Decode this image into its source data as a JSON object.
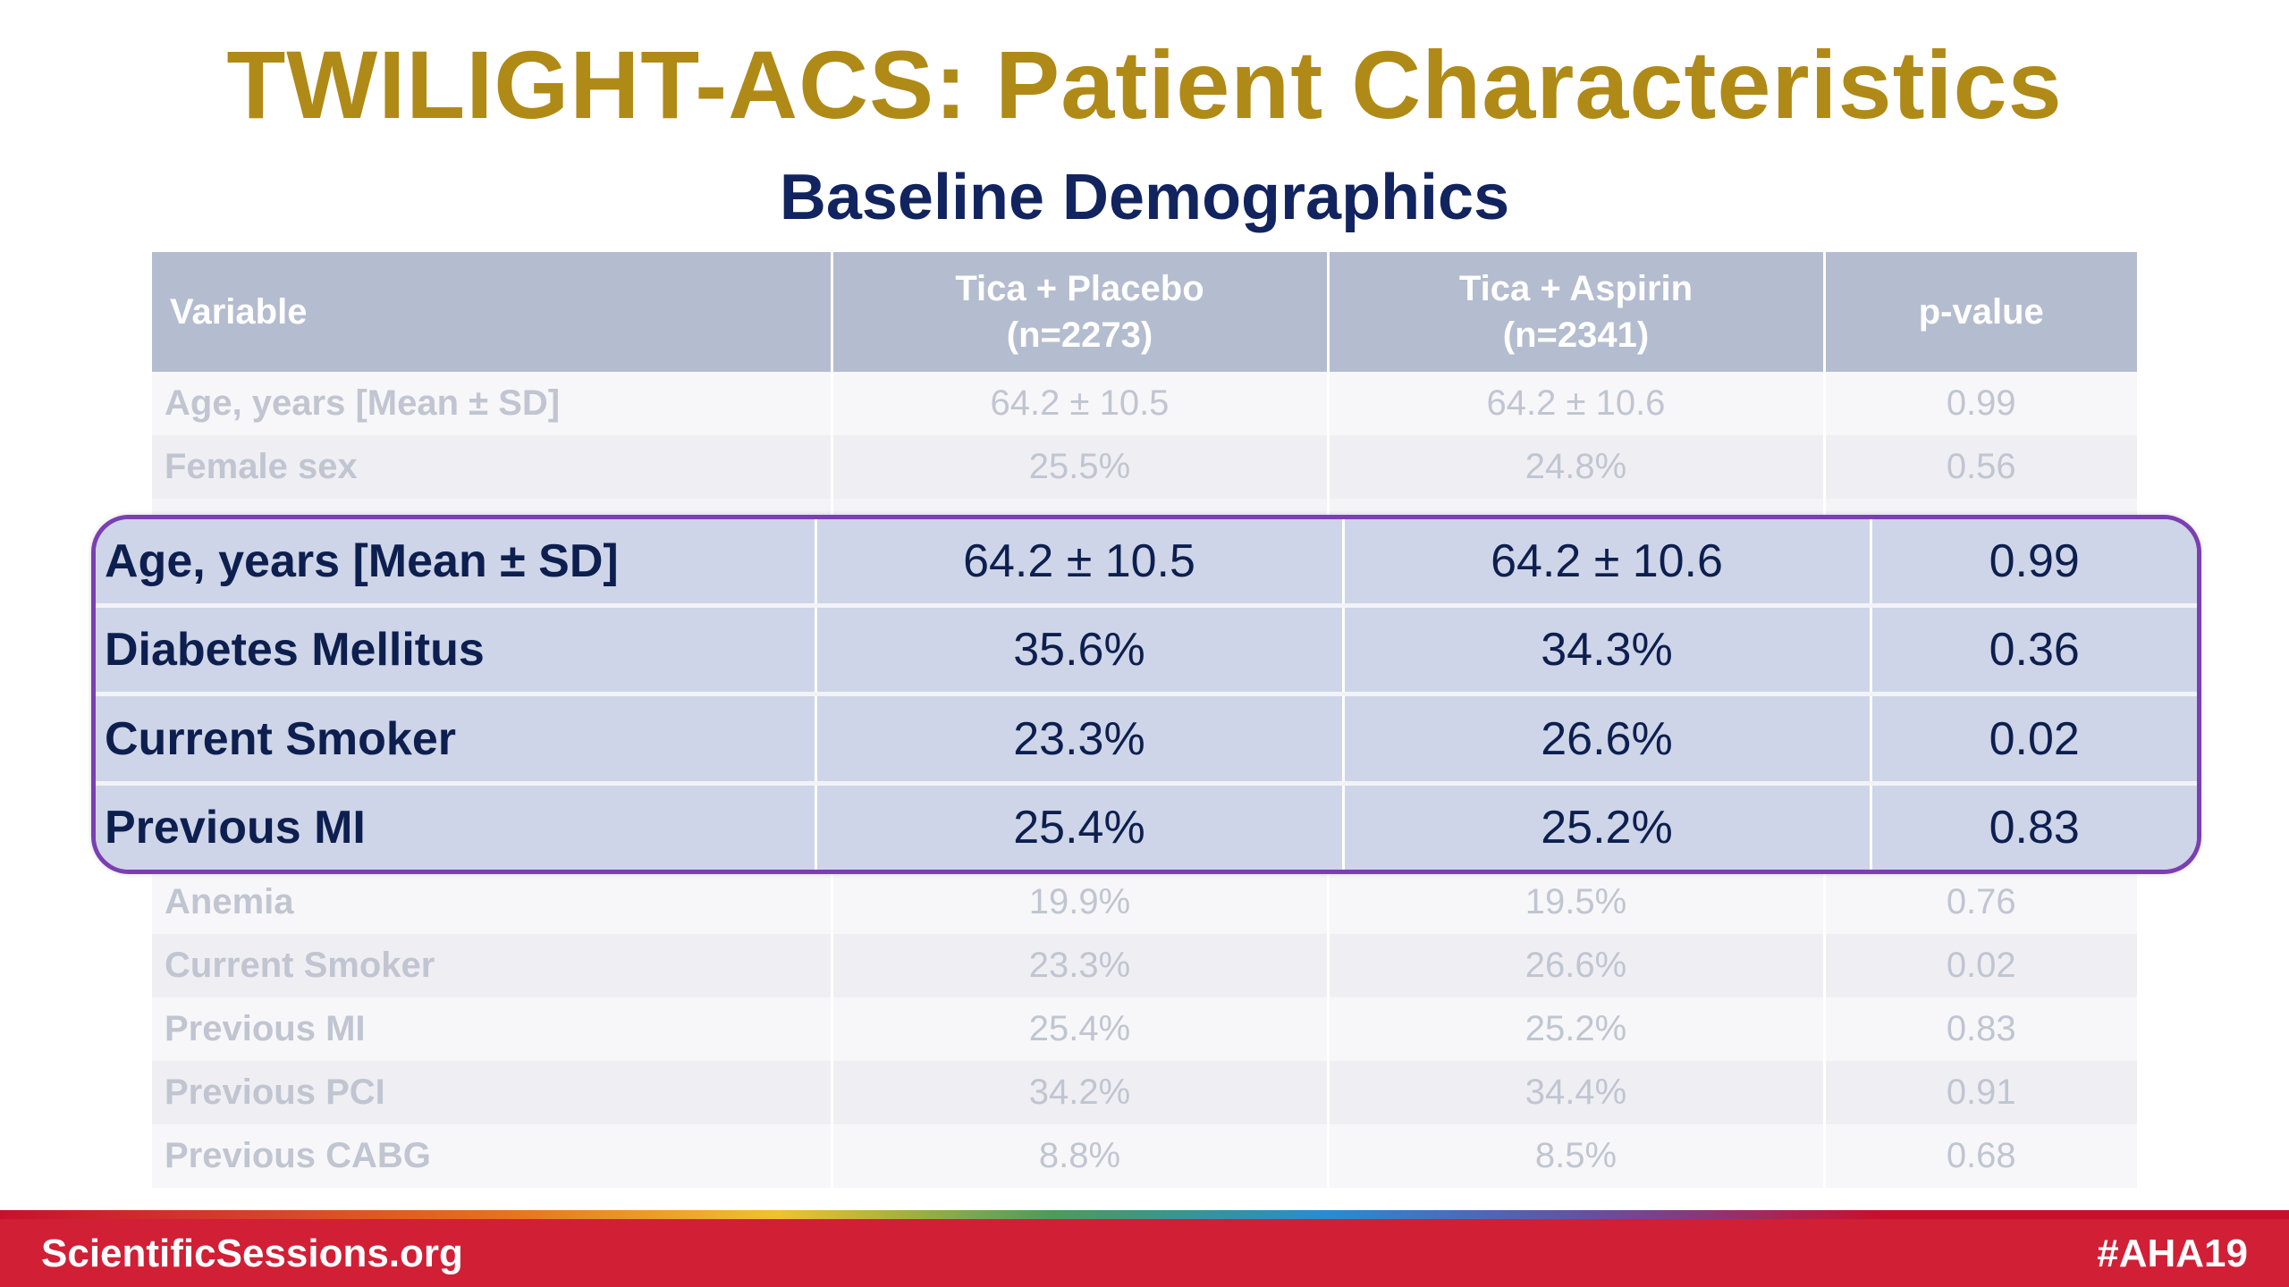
{
  "slide": {
    "title": "TWILIGHT-ACS: Patient Characteristics",
    "subtitle": "Baseline Demographics"
  },
  "table": {
    "headers": {
      "variable": "Variable",
      "placebo_line1": "Tica + Placebo",
      "placebo_line2": "(n=2273)",
      "aspirin_line1": "Tica + Aspirin",
      "aspirin_line2": "(n=2341)",
      "pvalue": "p-value"
    },
    "top_rows": [
      {
        "variable": "Age, years [Mean ± SD]",
        "placebo": "64.2 ± 10.5",
        "aspirin": "64.2 ± 10.6",
        "p": "0.99"
      },
      {
        "variable": "Female sex",
        "placebo": "25.5%",
        "aspirin": "24.8%",
        "p": "0.56"
      }
    ],
    "bottom_rows": [
      {
        "variable": "Anemia",
        "placebo": "19.9%",
        "aspirin": "19.5%",
        "p": "0.76"
      },
      {
        "variable": "Current Smoker",
        "placebo": "23.3%",
        "aspirin": "26.6%",
        "p": "0.02"
      },
      {
        "variable": "Previous MI",
        "placebo": "25.4%",
        "aspirin": "25.2%",
        "p": "0.83"
      },
      {
        "variable": "Previous PCI",
        "placebo": "34.2%",
        "aspirin": "34.4%",
        "p": "0.91"
      },
      {
        "variable": "Previous CABG",
        "placebo": "8.8%",
        "aspirin": "8.5%",
        "p": "0.68"
      }
    ]
  },
  "highlight": {
    "rows": [
      {
        "variable": "Age, years [Mean ± SD]",
        "placebo": "64.2 ± 10.5",
        "aspirin": "64.2 ± 10.6",
        "p": "0.99"
      },
      {
        "variable": "Diabetes Mellitus",
        "placebo": "35.6%",
        "aspirin": "34.3%",
        "p": "0.36"
      },
      {
        "variable": "Current Smoker",
        "placebo": "23.3%",
        "aspirin": "26.6%",
        "p": "0.02"
      },
      {
        "variable": "Previous MI",
        "placebo": "25.4%",
        "aspirin": "25.2%",
        "p": "0.83"
      }
    ]
  },
  "footer": {
    "left": "ScientificSessions.org",
    "right": "#AHA19"
  },
  "colors": {
    "title": "#b08a17",
    "subtitle": "#12245f",
    "highlight_border": "#7b3fb2",
    "footer": "#d11f36"
  }
}
